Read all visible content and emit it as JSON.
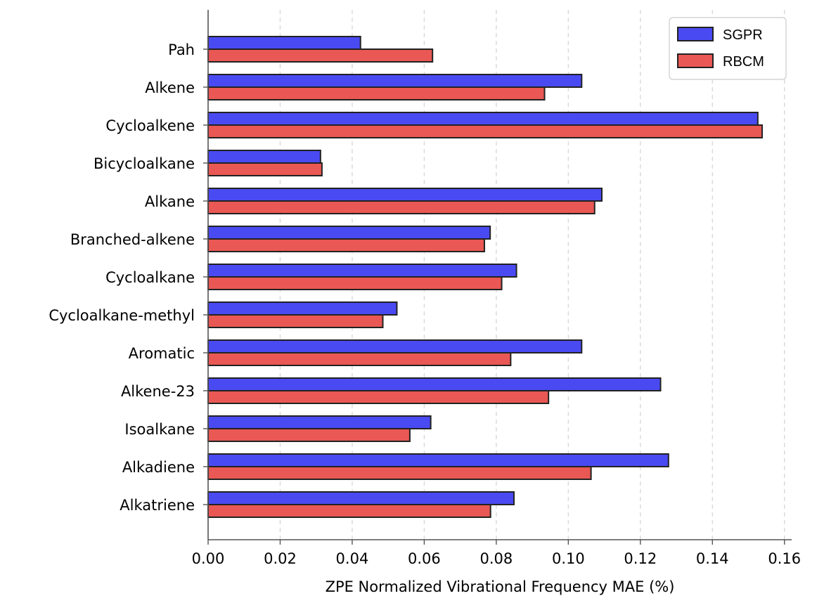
{
  "chart_data": {
    "type": "bar",
    "orientation": "horizontal",
    "categories": [
      "Pah",
      "Alkene",
      "Cycloalkene",
      "Bicycloalkane",
      "Alkane",
      "Branched-alkene",
      "Cycloalkane",
      "Cycloalkane-methyl",
      "Aromatic",
      "Alkene-23",
      "Isoalkane",
      "Alkadiene",
      "Alkatriene"
    ],
    "series": [
      {
        "name": "SGPR",
        "color": "#4a4af2",
        "values": [
          0.0423,
          0.1037,
          0.1526,
          0.0312,
          0.1093,
          0.0783,
          0.0856,
          0.0524,
          0.1037,
          0.1256,
          0.0618,
          0.1278,
          0.0849
        ]
      },
      {
        "name": "RBCM",
        "color": "#e95854",
        "values": [
          0.0623,
          0.0934,
          0.1538,
          0.0316,
          0.1073,
          0.0767,
          0.0815,
          0.0485,
          0.084,
          0.0945,
          0.056,
          0.1063,
          0.0784
        ]
      }
    ],
    "title": "",
    "xlabel": "ZPE Normalized Vibrational Frequency MAE (%)",
    "ylabel": "",
    "xlim": [
      0,
      0.162
    ],
    "xticks": [
      "0.00",
      "0.02",
      "0.04",
      "0.06",
      "0.08",
      "0.10",
      "0.12",
      "0.14",
      "0.16"
    ],
    "grid": "vertical-dashed",
    "legend_position": "top-right"
  }
}
